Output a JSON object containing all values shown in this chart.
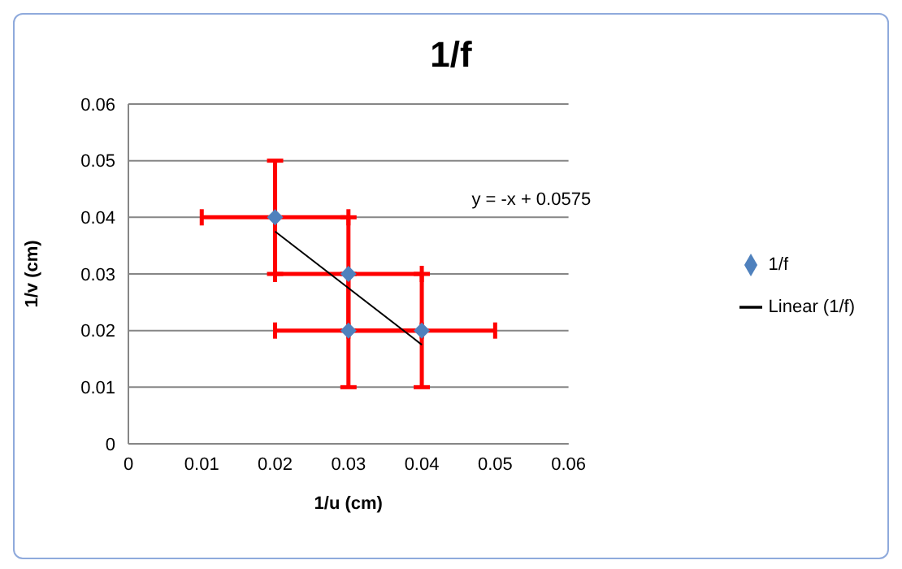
{
  "chart_data": {
    "type": "scatter",
    "title": "1/f",
    "xlabel": "1/u (cm)",
    "ylabel": "1/v (cm)",
    "xlim": [
      0,
      0.06
    ],
    "xticks": [
      0,
      0.01,
      0.02,
      0.03,
      0.04,
      0.05,
      0.06
    ],
    "ylim": [
      0,
      0.06
    ],
    "yticks": [
      0,
      0.01,
      0.02,
      0.03,
      0.04,
      0.05,
      0.06
    ],
    "grid": "y",
    "legend": "right",
    "annotations": [
      "y = -x + 0.0575"
    ],
    "series": [
      {
        "name": "1/f",
        "marker": "diamond",
        "color": "#4f81bd",
        "x": [
          0.02,
          0.03,
          0.03,
          0.04
        ],
        "values": [
          0.04,
          0.03,
          0.02,
          0.02
        ],
        "errors": [
          0.01,
          0.01,
          0.01,
          0.01
        ],
        "xerrors": [
          0.01,
          0.01,
          0.01,
          0.01
        ]
      },
      {
        "name": "Linear (1/f)",
        "type": "line",
        "marker": "none",
        "color": "#000000",
        "x": [
          0.02,
          0.04
        ],
        "values": [
          0.0375,
          0.0175
        ]
      }
    ]
  }
}
